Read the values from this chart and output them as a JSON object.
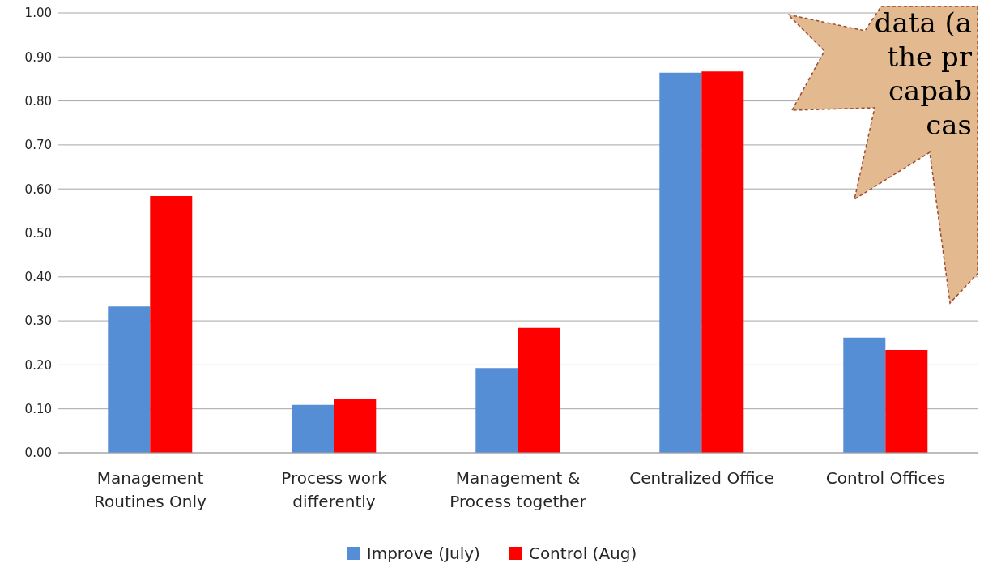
{
  "chart_data": {
    "type": "bar",
    "categories": [
      "Management Routines Only",
      "Process work differently",
      "Management & Process together",
      "Centralized Office",
      "Control Offices"
    ],
    "series": [
      {
        "name": "Improve (July)",
        "color": "#558ed5",
        "values": [
          0.333,
          0.109,
          0.193,
          0.864,
          0.262
        ]
      },
      {
        "name": "Control (Aug)",
        "color": "#ff0000",
        "values": [
          0.584,
          0.122,
          0.284,
          0.867,
          0.234
        ]
      }
    ],
    "ylim": [
      0,
      1
    ],
    "yticks": [
      {
        "value": 0,
        "label": "0.00"
      },
      {
        "value": 0.1,
        "label": "0.10"
      },
      {
        "value": 0.2,
        "label": "0.20"
      },
      {
        "value": 0.3,
        "label": "0.30"
      },
      {
        "value": 0.4,
        "label": "0.40"
      },
      {
        "value": 0.5,
        "label": "0.50"
      },
      {
        "value": 0.6,
        "label": "0.60"
      },
      {
        "value": 0.7,
        "label": "0.70"
      },
      {
        "value": 0.8,
        "label": "0.80"
      },
      {
        "value": 0.9,
        "label": "0.90"
      },
      {
        "value": 1,
        "label": "1.00"
      }
    ],
    "grid": "y",
    "legend": "bottom",
    "annotations": [
      "data (a",
      "the pr",
      "capab",
      "cas"
    ]
  }
}
